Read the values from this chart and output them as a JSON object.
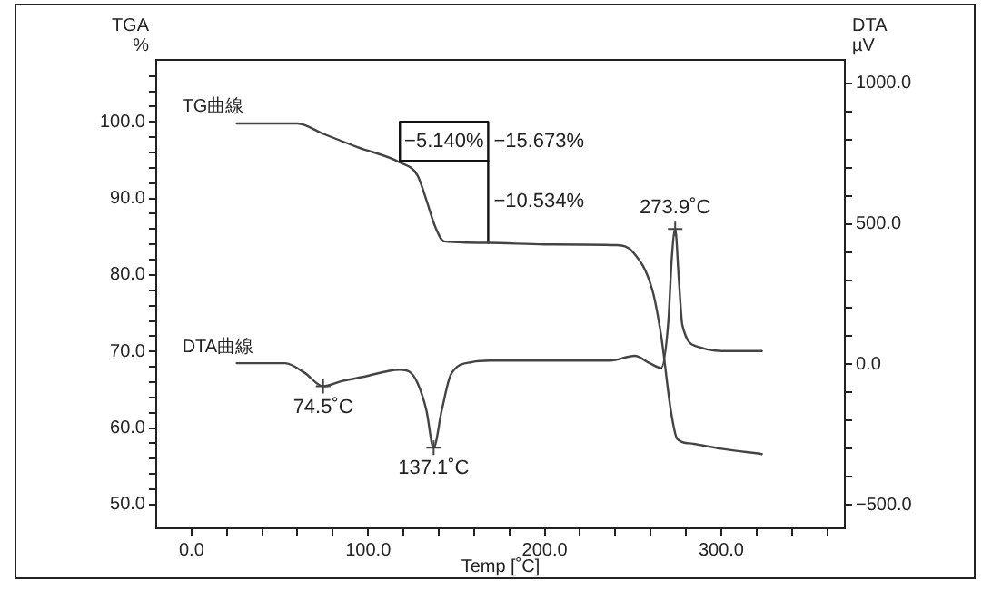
{
  "chart_data": {
    "type": "line",
    "xlabel": "Temp [˚C]",
    "ylabel": "TGA\n%",
    "y2label": "DTA\nµV",
    "grid": false,
    "legend": false,
    "xlim": [
      -20,
      370
    ],
    "xticks": [
      {
        "value": 0,
        "label": "0.0"
      },
      {
        "value": 20,
        "label": null
      },
      {
        "value": 40,
        "label": null
      },
      {
        "value": 60,
        "label": null
      },
      {
        "value": 80,
        "label": null
      },
      {
        "value": 100,
        "label": "100.0"
      },
      {
        "value": 120,
        "label": null
      },
      {
        "value": 140,
        "label": null
      },
      {
        "value": 160,
        "label": null
      },
      {
        "value": 180,
        "label": null
      },
      {
        "value": 200,
        "label": "200.0"
      },
      {
        "value": 220,
        "label": null
      },
      {
        "value": 240,
        "label": null
      },
      {
        "value": 260,
        "label": null
      },
      {
        "value": 280,
        "label": null
      },
      {
        "value": 300,
        "label": "300.0"
      },
      {
        "value": 320,
        "label": null
      },
      {
        "value": 340,
        "label": null
      },
      {
        "value": 360,
        "label": null
      }
    ],
    "ylim": [
      46.9,
      108.1
    ],
    "yticks": [
      {
        "value": 50,
        "label": "50.0"
      },
      {
        "value": 52,
        "label": null
      },
      {
        "value": 54,
        "label": null
      },
      {
        "value": 56,
        "label": null
      },
      {
        "value": 58,
        "label": null
      },
      {
        "value": 60,
        "label": "60.0"
      },
      {
        "value": 62,
        "label": null
      },
      {
        "value": 64,
        "label": null
      },
      {
        "value": 66,
        "label": null
      },
      {
        "value": 68,
        "label": null
      },
      {
        "value": 70,
        "label": "70.0"
      },
      {
        "value": 72,
        "label": null
      },
      {
        "value": 74,
        "label": null
      },
      {
        "value": 76,
        "label": null
      },
      {
        "value": 78,
        "label": null
      },
      {
        "value": 80,
        "label": "80.0"
      },
      {
        "value": 82,
        "label": null
      },
      {
        "value": 84,
        "label": null
      },
      {
        "value": 86,
        "label": null
      },
      {
        "value": 88,
        "label": null
      },
      {
        "value": 90,
        "label": "90.0"
      },
      {
        "value": 92,
        "label": null
      },
      {
        "value": 94,
        "label": null
      },
      {
        "value": 96,
        "label": null
      },
      {
        "value": 98,
        "label": null
      },
      {
        "value": 100,
        "label": "100.0"
      },
      {
        "value": 102,
        "label": null
      },
      {
        "value": 104,
        "label": null
      },
      {
        "value": 106,
        "label": null
      }
    ],
    "y2lim": [
      -584,
      1084
    ],
    "y2ticks": [
      {
        "value": -500,
        "label": "−500.0"
      },
      {
        "value": -400,
        "label": null
      },
      {
        "value": -300,
        "label": null
      },
      {
        "value": -200,
        "label": null
      },
      {
        "value": -100,
        "label": null
      },
      {
        "value": 0,
        "label": "0.0"
      },
      {
        "value": 100,
        "label": null
      },
      {
        "value": 200,
        "label": null
      },
      {
        "value": 300,
        "label": null
      },
      {
        "value": 400,
        "label": null
      },
      {
        "value": 500,
        "label": "500.0"
      },
      {
        "value": 600,
        "label": null
      },
      {
        "value": 700,
        "label": null
      },
      {
        "value": 800,
        "label": null
      },
      {
        "value": 900,
        "label": null
      },
      {
        "value": 1000,
        "label": "1000.0"
      }
    ],
    "series": [
      {
        "name": "TG曲線",
        "color": "#444444",
        "x": [
          25.6,
          40,
          60,
          74,
          94,
          118,
          128,
          133,
          138,
          143,
          168,
          200,
          241,
          250,
          261,
          266,
          271.5,
          275,
          282,
          300,
          323
        ],
        "values": [
          99.8,
          99.8,
          99.8,
          98.5,
          96.7,
          94.7,
          93,
          89.8,
          86.3,
          84.4,
          84.2,
          84,
          83.9,
          83,
          78,
          72,
          62.2,
          58.6,
          58,
          57.3,
          56.6
        ]
      },
      {
        "name": "DTA曲線",
        "color": "#444444",
        "axis": "y2",
        "x": [
          25.6,
          53,
          64,
          74.5,
          85,
          97,
          118,
          123,
          128,
          133,
          137.1,
          141.7,
          147,
          159,
          169,
          237,
          251,
          259.5,
          266,
          270,
          272,
          273.9,
          276,
          278,
          287,
          306,
          323
        ],
        "values": [
          4,
          4,
          -30,
          -78,
          -60,
          -45,
          -19,
          -25,
          -67,
          -164,
          -297,
          -164,
          -35,
          8,
          13,
          13,
          30,
          4,
          -13,
          150,
          380,
          482,
          300,
          138,
          62,
          47,
          47
        ]
      },
      {
        "type": "scatter",
        "color": "#444444",
        "axis": "y2",
        "marker": "cross",
        "x": [
          74.5,
          137.1,
          273.9
        ],
        "values": [
          -78,
          -297,
          482
        ]
      },
      {
        "color": "#111111",
        "x": [
          118,
          118,
          168,
          168
        ],
        "values": [
          94.9,
          100,
          100,
          84.2
        ]
      },
      {
        "color": "#111111",
        "x": [
          118,
          168
        ],
        "values": [
          94.9,
          94.9
        ]
      }
    ],
    "annotations": [
      "−5.140%",
      "−15.673%",
      "−10.534%",
      "74.5˚C",
      "137.1˚C",
      "273.9˚C"
    ]
  }
}
